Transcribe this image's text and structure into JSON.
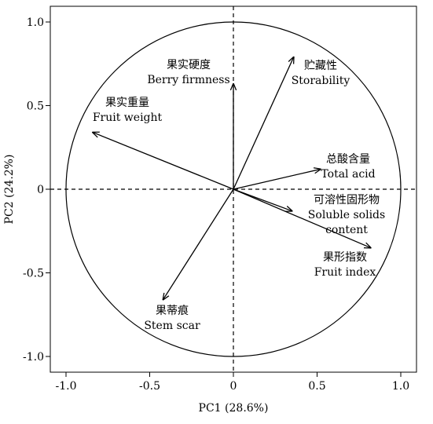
{
  "chart_data": {
    "type": "scatter",
    "subtype": "pca-loading-biplot",
    "title": "",
    "xlabel": "PC1 (28.6%)",
    "ylabel": "PC2 (24.2%)",
    "xlim": [
      -1.1,
      1.1
    ],
    "ylim": [
      -1.1,
      1.1
    ],
    "xticks": [
      -1.0,
      -0.5,
      0,
      0.5,
      1.0
    ],
    "xtick_labels": [
      "-1.0",
      "-0.5",
      "0",
      "0.5",
      "1.0"
    ],
    "yticks": [
      1.0,
      0.5,
      0,
      -0.5,
      -1.0
    ],
    "ytick_labels": [
      "1.0",
      "0.5",
      "0",
      "-0.5",
      "-1.0"
    ],
    "unit_circle": true,
    "reference_lines": {
      "x0": "dashed",
      "y0": "dashed"
    },
    "grid": false,
    "vectors": [
      {
        "id": "berry-firmness",
        "label_zh": "果实硬度",
        "label_en": "Berry firmness",
        "x": 0.0,
        "y": 0.63
      },
      {
        "id": "storability",
        "label_zh": "贮藏性",
        "label_en": "Storability",
        "x": 0.36,
        "y": 0.79
      },
      {
        "id": "fruit-weight",
        "label_zh": "果实重量",
        "label_en": "Fruit weight",
        "x": -0.84,
        "y": 0.34
      },
      {
        "id": "total-acid",
        "label_zh": "总酸含量",
        "label_en": "Total acid",
        "x": 0.52,
        "y": 0.12
      },
      {
        "id": "soluble-solids",
        "label_zh": "可溶性固形物",
        "label_en": "Soluble solids content",
        "x": 0.35,
        "y": -0.13
      },
      {
        "id": "fruit-index",
        "label_zh": "果形指数",
        "label_en": "Fruit index",
        "x": 0.82,
        "y": -0.35
      },
      {
        "id": "stem-scar",
        "label_zh": "果蒂痕",
        "label_en": "Stem scar",
        "x": -0.42,
        "y": -0.66
      }
    ],
    "label_lines": [
      {
        "id": "berry-firmness",
        "lines": [
          "果实硬度",
          "Berry firmness"
        ]
      },
      {
        "id": "storability",
        "lines": [
          "贮藏性",
          "Storability"
        ]
      },
      {
        "id": "fruit-weight",
        "lines": [
          "果实重量",
          "Fruit weight"
        ]
      },
      {
        "id": "total-acid",
        "lines": [
          "总酸含量",
          "Total acid"
        ]
      },
      {
        "id": "soluble-solids",
        "lines": [
          "可溶性固形物",
          "Soluble solids",
          "content"
        ]
      },
      {
        "id": "fruit-index",
        "lines": [
          "果形指数",
          "Fruit index"
        ]
      },
      {
        "id": "stem-scar",
        "lines": [
          "果蒂痕",
          "Stem scar"
        ]
      }
    ]
  }
}
